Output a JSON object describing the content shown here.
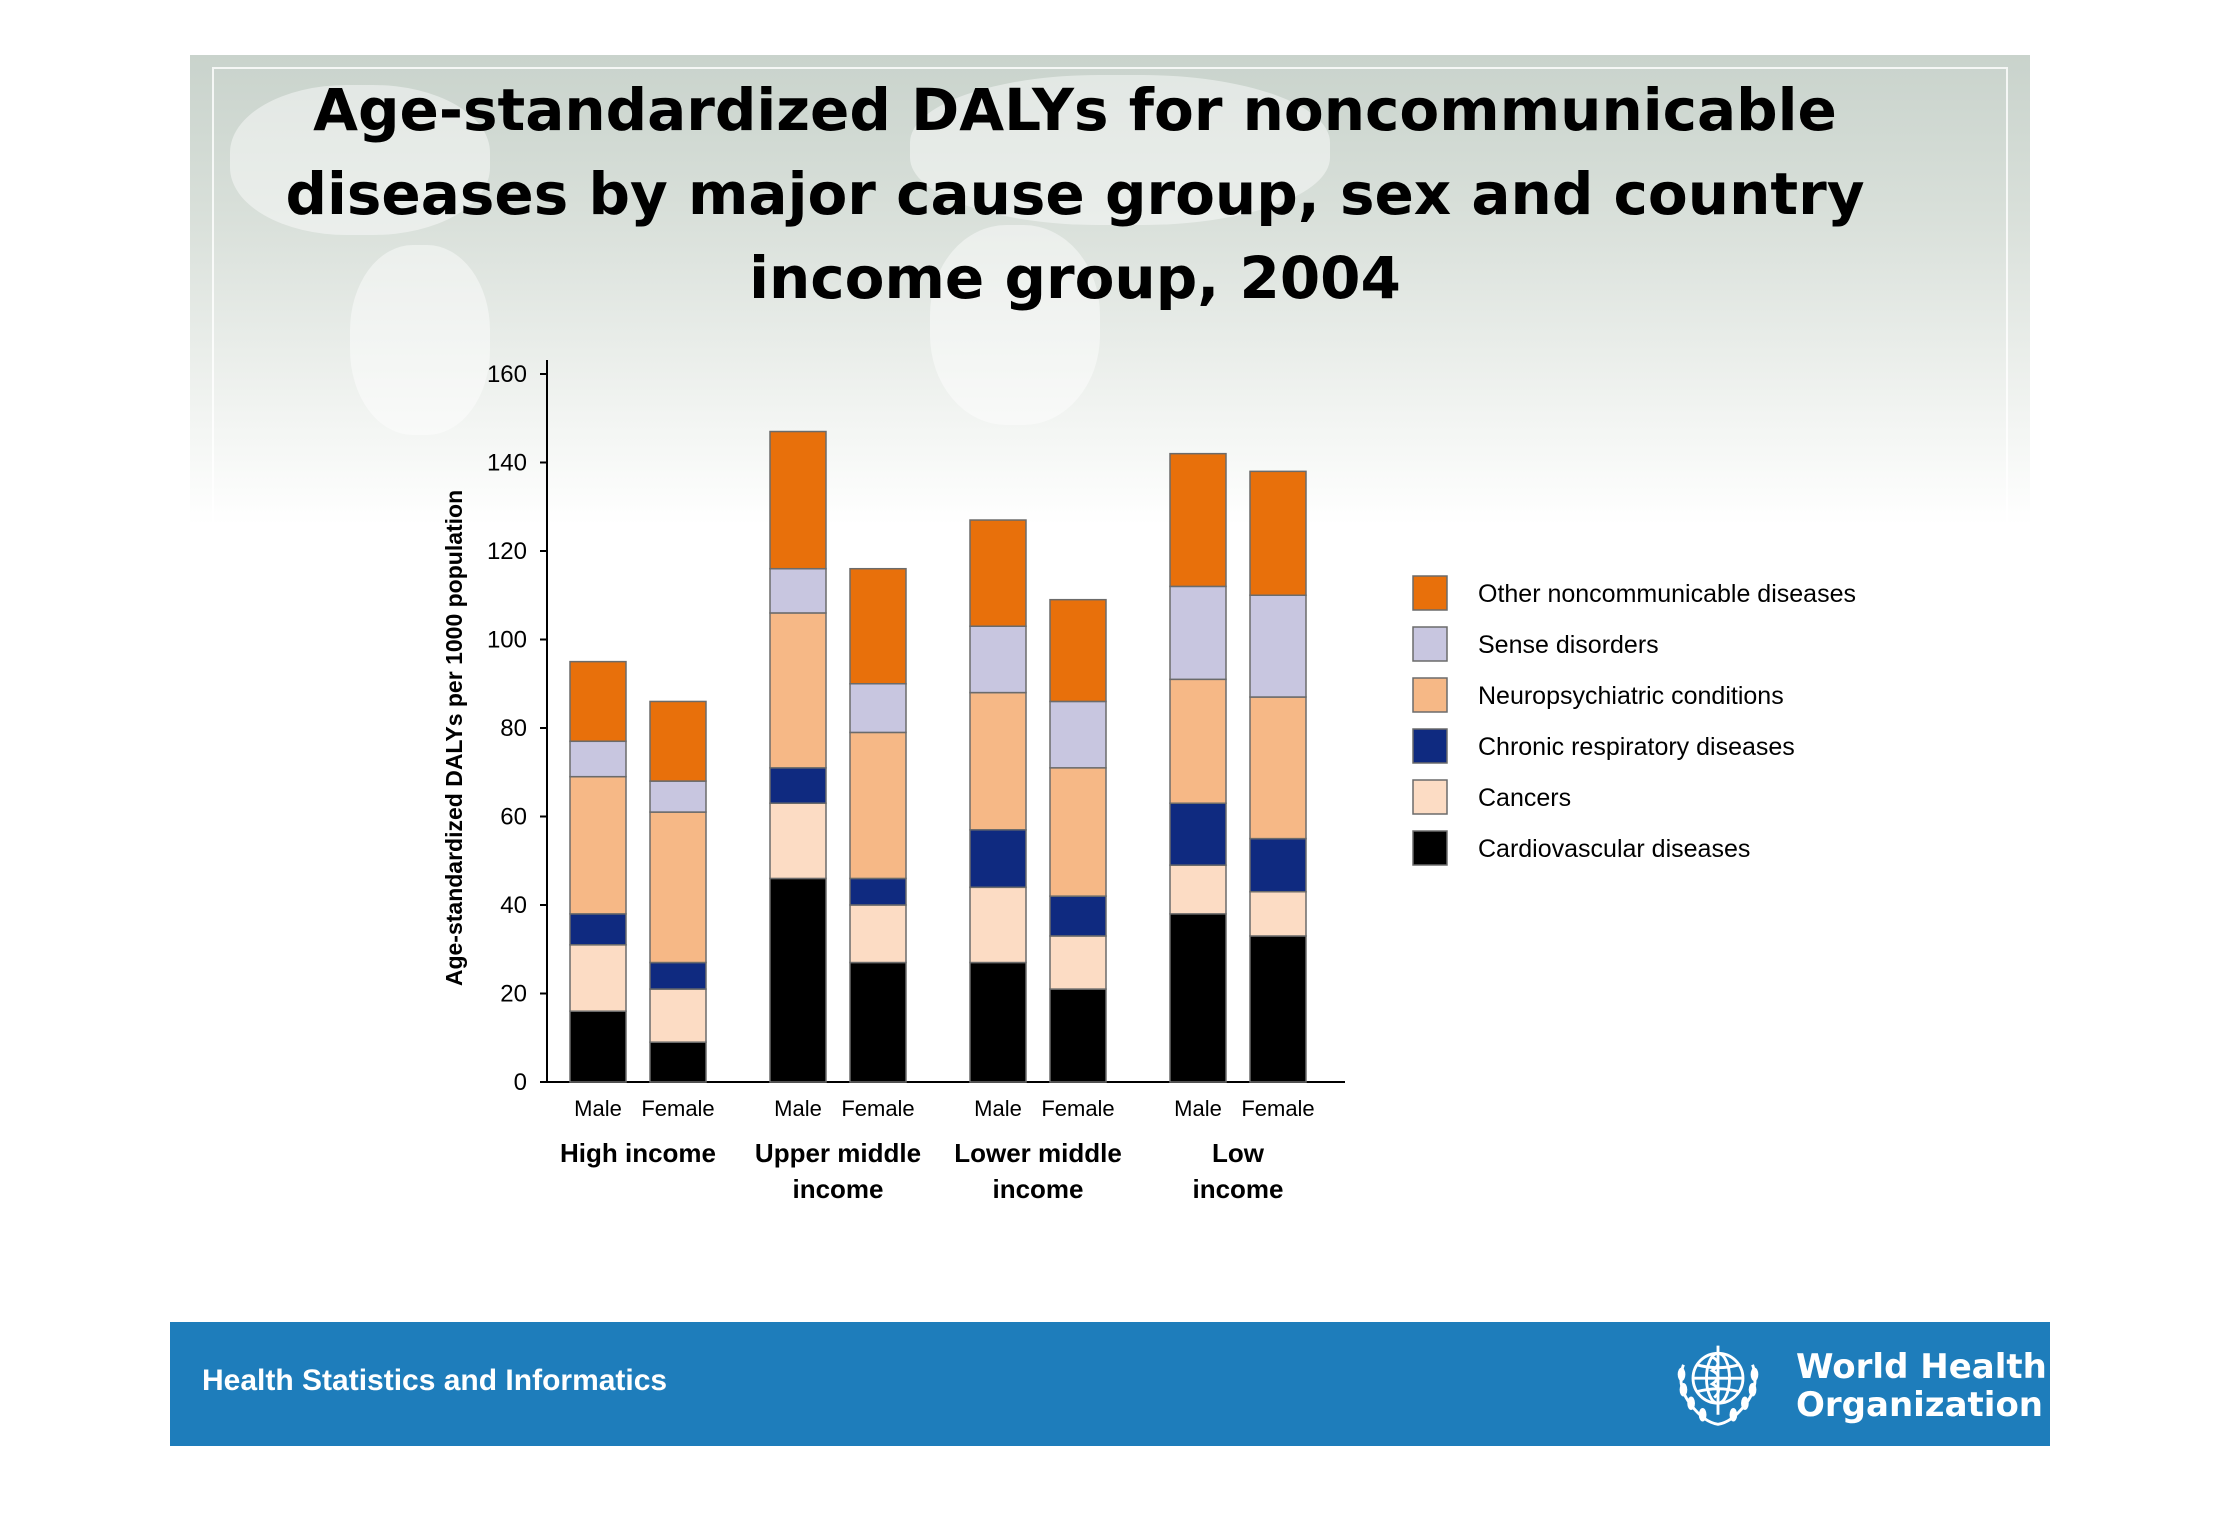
{
  "slide": {
    "title_lines": [
      "Age-standardized DALYs for noncommunicable",
      "diseases by major cause group,  sex and country",
      "income group, 2004"
    ]
  },
  "footer": {
    "label": "Health Statistics and Informatics",
    "org_name_lines": [
      "World Health",
      "Organization"
    ],
    "color": "#1e7dbb"
  },
  "chart_data": {
    "type": "bar",
    "stacked": true,
    "ylabel": "Age-standardized DALYs per 1000 population",
    "ylim": [
      0,
      160
    ],
    "yticks": [
      0,
      20,
      40,
      60,
      80,
      100,
      120,
      140,
      160
    ],
    "groups": [
      {
        "label_lines": [
          "High income"
        ],
        "categories": [
          "Male",
          "Female"
        ]
      },
      {
        "label_lines": [
          "Upper middle",
          "income"
        ],
        "categories": [
          "Male",
          "Female"
        ]
      },
      {
        "label_lines": [
          "Lower middle",
          "income"
        ],
        "categories": [
          "Male",
          "Female"
        ]
      },
      {
        "label_lines": [
          "Low",
          "income"
        ],
        "categories": [
          "Male",
          "Female"
        ]
      }
    ],
    "categories": [
      "Male",
      "Female",
      "Male",
      "Female",
      "Male",
      "Female",
      "Male",
      "Female"
    ],
    "series": [
      {
        "name": "Cardiovascular diseases",
        "color": "#000000",
        "values": [
          16,
          9,
          46,
          27,
          27,
          21,
          38,
          33
        ]
      },
      {
        "name": "Cancers",
        "color": "#fcdcc4",
        "values": [
          15,
          12,
          17,
          13,
          17,
          12,
          11,
          10
        ]
      },
      {
        "name": "Chronic respiratory diseases",
        "color": "#0f2a80",
        "values": [
          7,
          6,
          8,
          6,
          13,
          9,
          14,
          12
        ]
      },
      {
        "name": "Neuropsychiatric conditions",
        "color": "#f6b886",
        "values": [
          31,
          34,
          35,
          33,
          31,
          29,
          28,
          32
        ]
      },
      {
        "name": "Sense disorders",
        "color": "#c8c6e0",
        "values": [
          8,
          7,
          10,
          11,
          15,
          15,
          21,
          23
        ]
      },
      {
        "name": "Other noncommunicable diseases",
        "color": "#e8700b",
        "values": [
          18,
          18,
          31,
          26,
          24,
          23,
          30,
          28
        ]
      }
    ],
    "legend_order": [
      "Other noncommunicable diseases",
      "Sense disorders",
      "Neuropsychiatric conditions",
      "Chronic respiratory diseases",
      "Cancers",
      "Cardiovascular diseases"
    ],
    "legend_position": "right",
    "grid": false
  }
}
